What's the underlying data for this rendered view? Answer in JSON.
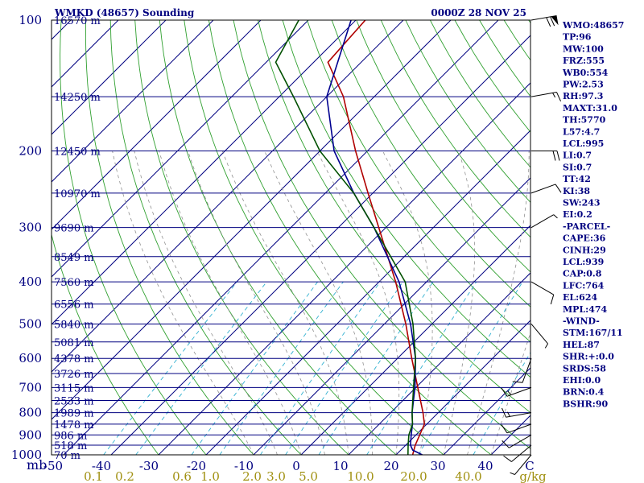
{
  "chart_data": {
    "type": "skew-t",
    "title": "WMKD (48657) Sounding",
    "time": "0000Z 28 NOV 25",
    "pressure_axis_label": "mb",
    "pressure_ticks": [
      100,
      200,
      300,
      400,
      500,
      600,
      700,
      800,
      900,
      1000
    ],
    "height_labels": [
      {
        "p": 100,
        "text": "16570 m"
      },
      {
        "p": 150,
        "text": "14250 m"
      },
      {
        "p": 200,
        "text": "12450 m"
      },
      {
        "p": 250,
        "text": "10970 m"
      },
      {
        "p": 300,
        "text": "9690 m"
      },
      {
        "p": 350,
        "text": "8549 m"
      },
      {
        "p": 400,
        "text": "7560 m"
      },
      {
        "p": 450,
        "text": "6556 m"
      },
      {
        "p": 500,
        "text": "5840 m"
      },
      {
        "p": 550,
        "text": "5081 m"
      },
      {
        "p": 600,
        "text": "4378 m"
      },
      {
        "p": 650,
        "text": "3726 m"
      },
      {
        "p": 700,
        "text": "3115 m"
      },
      {
        "p": 750,
        "text": "2533 m"
      },
      {
        "p": 800,
        "text": "1989 m"
      },
      {
        "p": 850,
        "text": "1478 m"
      },
      {
        "p": 900,
        "text": "986 m"
      },
      {
        "p": 950,
        "text": "518 m"
      },
      {
        "p": 1000,
        "text": "70 m"
      }
    ],
    "temperature_ticks": [
      -50,
      -40,
      -30,
      -20,
      -10,
      0,
      10,
      20,
      30,
      40
    ],
    "temperature_tick_labels": [
      "-50",
      "-40",
      "-30",
      "-20",
      "-10",
      "0",
      "10",
      "20",
      "30",
      "40",
      "C"
    ],
    "mixing_ratio_labels": [
      "0.1",
      "0.2",
      "0.6",
      "1.0",
      "2.0",
      "3.0",
      "5.0",
      "10.0",
      "20.0",
      "40.0",
      "g/kg"
    ],
    "mixing_ratios": [
      0.1,
      0.2,
      0.6,
      1.0,
      2.0,
      3.0,
      5.0,
      10.0,
      20.0,
      40.0
    ],
    "series": [
      {
        "name": "parcel-temperature",
        "color": "#b00000",
        "points": [
          [
            1000,
            23.5
          ],
          [
            950,
            22.0
          ],
          [
            900,
            20.8
          ],
          [
            850,
            19.5
          ],
          [
            800,
            16.8
          ],
          [
            700,
            10.4
          ],
          [
            600,
            3.0
          ],
          [
            500,
            -5.5
          ],
          [
            400,
            -16.5
          ],
          [
            300,
            -31.5
          ],
          [
            250,
            -41.0
          ],
          [
            200,
            -52.5
          ],
          [
            150,
            -66.5
          ],
          [
            125,
            -77.0
          ],
          [
            100,
            -78.0
          ]
        ]
      },
      {
        "name": "environment-temperature",
        "color": "#000090",
        "points": [
          [
            1000,
            25.5
          ],
          [
            975,
            22.5
          ],
          [
            950,
            21.0
          ],
          [
            900,
            19.0
          ],
          [
            850,
            17.0
          ],
          [
            800,
            14.5
          ],
          [
            700,
            9.8
          ],
          [
            600,
            3.8
          ],
          [
            500,
            -4.5
          ],
          [
            400,
            -15.8
          ],
          [
            300,
            -32.5
          ],
          [
            250,
            -44.0
          ],
          [
            200,
            -57.0
          ],
          [
            150,
            -70.0
          ],
          [
            100,
            -81.0
          ]
        ]
      },
      {
        "name": "dewpoint",
        "color": "#005000",
        "points": [
          [
            1000,
            22.5
          ],
          [
            950,
            20.5
          ],
          [
            900,
            18.5
          ],
          [
            850,
            17.0
          ],
          [
            800,
            14.5
          ],
          [
            700,
            9.5
          ],
          [
            600,
            3.8
          ],
          [
            500,
            -4.0
          ],
          [
            400,
            -14.5
          ],
          [
            300,
            -32.5
          ],
          [
            250,
            -44.0
          ],
          [
            200,
            -60.0
          ],
          [
            150,
            -77.0
          ],
          [
            125,
            -88.0
          ],
          [
            100,
            -92.0
          ]
        ]
      }
    ],
    "wind_barbs": [
      {
        "p": 100,
        "dir": 80,
        "speed": 70
      },
      {
        "p": 150,
        "dir": 80,
        "speed": 15
      },
      {
        "p": 200,
        "dir": 90,
        "speed": 20
      },
      {
        "p": 250,
        "dir": 70,
        "speed": 10
      },
      {
        "p": 300,
        "dir": 60,
        "speed": 5
      },
      {
        "p": 400,
        "dir": 120,
        "speed": 10
      },
      {
        "p": 500,
        "dir": 140,
        "speed": 5
      },
      {
        "p": 600,
        "dir": 200,
        "speed": 10
      },
      {
        "p": 700,
        "dir": 250,
        "speed": 15
      },
      {
        "p": 800,
        "dir": 260,
        "speed": 15
      },
      {
        "p": 850,
        "dir": 250,
        "speed": 10
      },
      {
        "p": 900,
        "dir": 240,
        "speed": 10
      },
      {
        "p": 950,
        "dir": 230,
        "speed": 10
      },
      {
        "p": 1000,
        "dir": 220,
        "speed": 5
      }
    ],
    "indices": [
      "WMO:48657",
      "TP:96",
      "MW:100",
      "FRZ:555",
      "WB0:554",
      "PW:2.53",
      "RH:97.3",
      "MAXT:31.0",
      "TH:5770",
      "L57:4.7",
      "LCL:995",
      "LI:0.7",
      "SI:0.7",
      "TT:42",
      "KI:38",
      "SW:243",
      "EI:0.2",
      "-PARCEL-",
      "CAPE:36",
      "CINH:29",
      "LCL:939",
      "CAP:0.8",
      "LFC:764",
      "EL:624",
      "MPL:474",
      "-WIND-",
      "STM:167/11",
      "HEL:87",
      "SHR:+:0.0",
      "SRDS:58",
      "EHI:0.0",
      "BRN:0.4",
      "BSHR:90"
    ]
  }
}
